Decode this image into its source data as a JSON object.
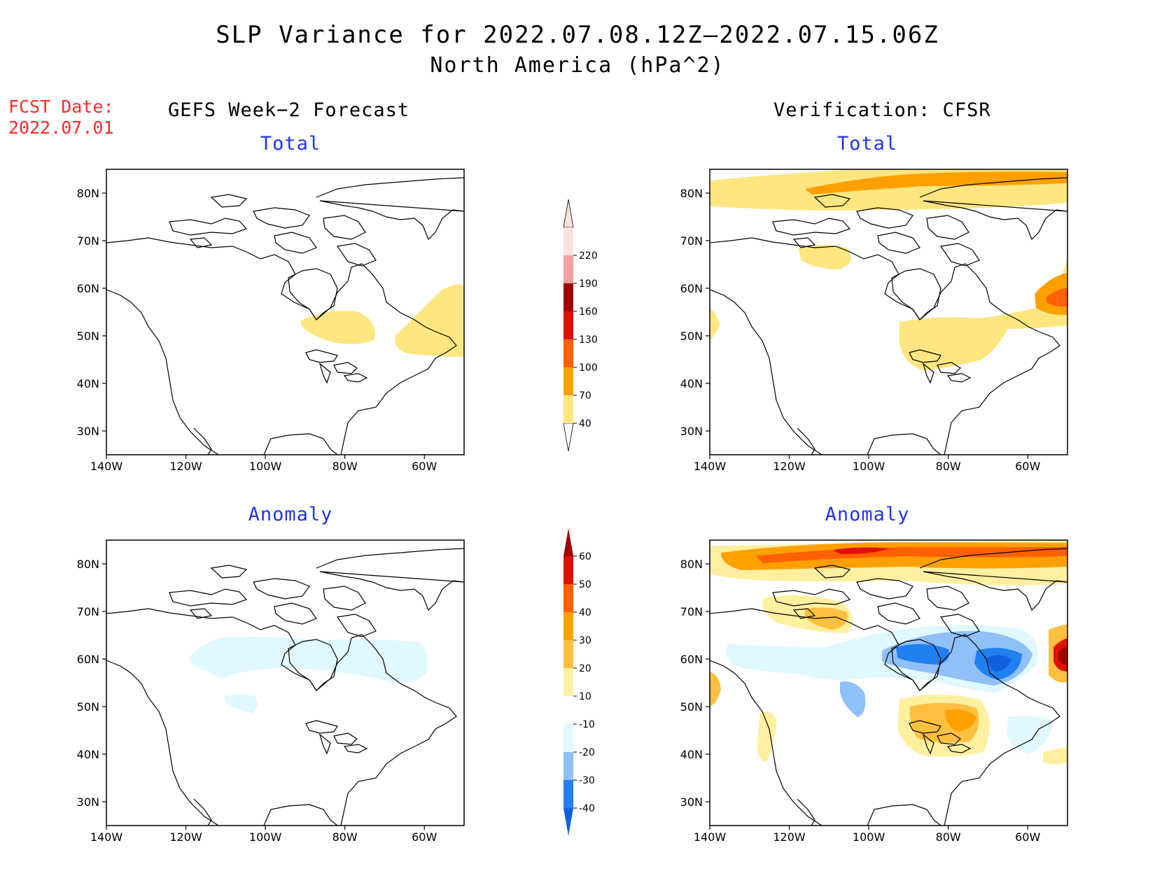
{
  "title": "SLP Variance for 2022.07.08.12Z–2022.07.15.06Z",
  "subtitle": "North America (hPa^2)",
  "fcst_date": {
    "label": "FCST Date:",
    "value": "2022.07.01"
  },
  "columns": {
    "left": "GEFS Week−2 Forecast",
    "right": "Verification: CFSR"
  },
  "panels": {
    "tl": {
      "title": "Total"
    },
    "tr": {
      "title": "Total"
    },
    "bl": {
      "title": "Anomaly"
    },
    "br": {
      "title": "Anomaly"
    }
  },
  "axes": {
    "lon_labels": [
      "140W",
      "120W",
      "100W",
      "80W",
      "60W"
    ],
    "lat_labels": [
      "80N",
      "70N",
      "60N",
      "50N",
      "40N",
      "30N"
    ],
    "lon_range": [
      -140,
      -50
    ],
    "lat_range": [
      25,
      85
    ]
  },
  "colorbar_total": {
    "levels": [
      "40",
      "70",
      "100",
      "130",
      "160",
      "190",
      "220"
    ],
    "colors": [
      "#ffe680",
      "#ffa000",
      "#ff6000",
      "#e01000",
      "#a00000",
      "#f4a0a0",
      "#fde0e0"
    ]
  },
  "colorbar_anomaly": {
    "levels": [
      "-40",
      "-30",
      "-20",
      "-10",
      "10",
      "20",
      "30",
      "40",
      "50",
      "60"
    ],
    "colors": [
      "#1060e0",
      "#2080f0",
      "#90c0f8",
      "#e0f8ff",
      "#ffffff",
      "#fff0a0",
      "#ffc040",
      "#ffa000",
      "#ff6000",
      "#e01000",
      "#a00000"
    ]
  }
}
